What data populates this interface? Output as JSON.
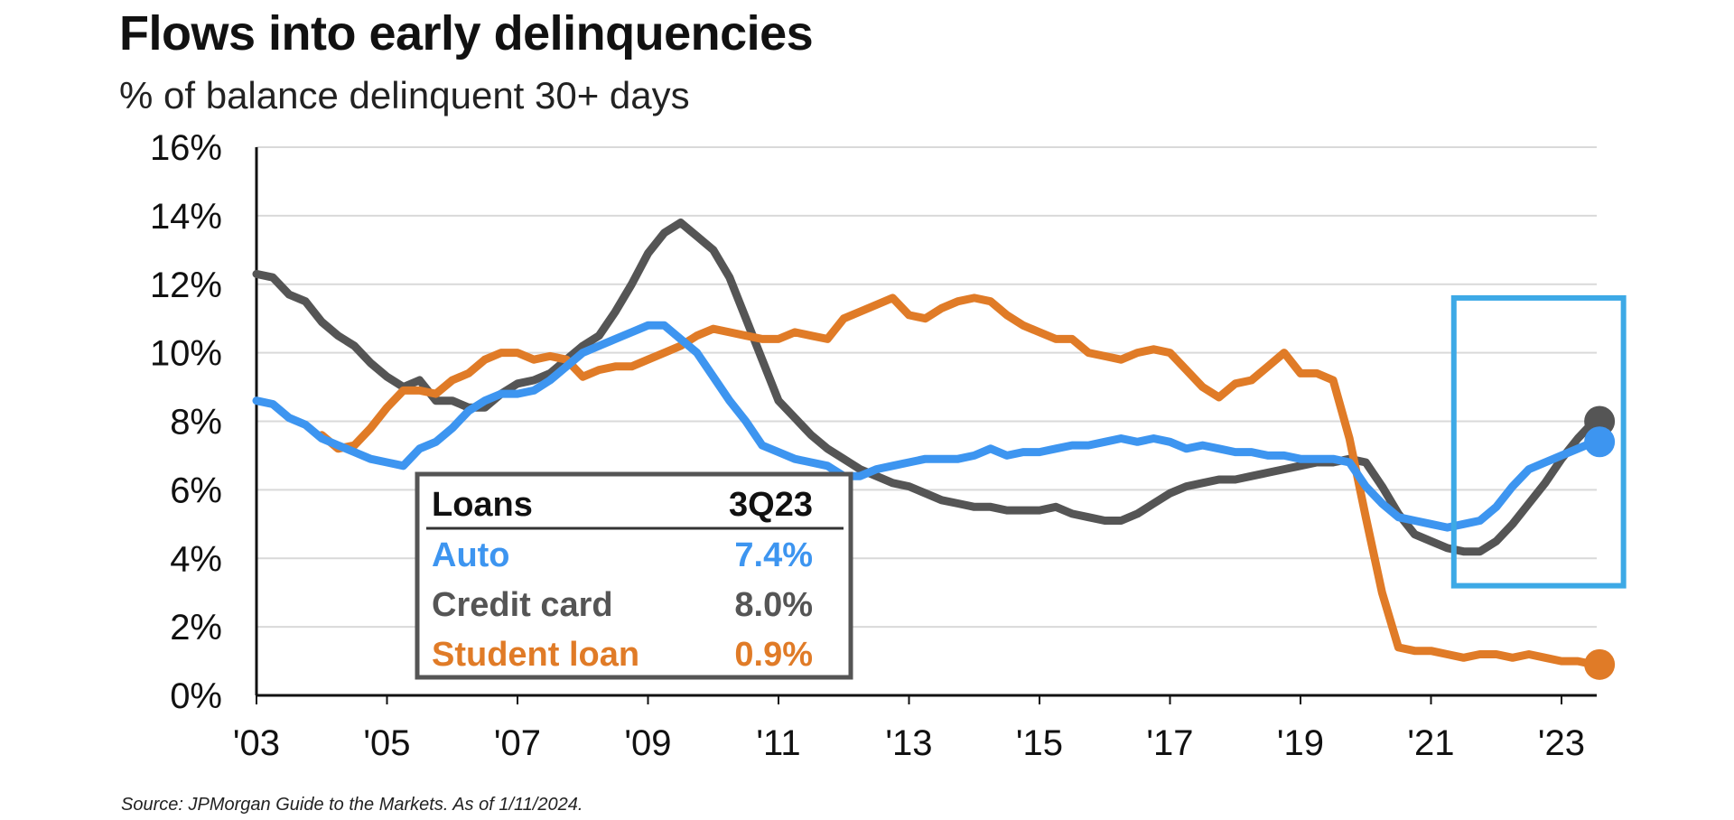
{
  "chart_data": {
    "type": "line",
    "title": "Flows into early delinquencies",
    "subtitle": "% of balance delinquent 30+ days",
    "ylim": [
      0,
      16
    ],
    "xlim": [
      2003,
      2023.75
    ],
    "y_ticks": [
      "0%",
      "2%",
      "4%",
      "6%",
      "8%",
      "10%",
      "12%",
      "14%",
      "16%"
    ],
    "y_tick_values": [
      0,
      2,
      4,
      6,
      8,
      10,
      12,
      14,
      16
    ],
    "x_ticks": [
      "'03",
      "'05",
      "'07",
      "'09",
      "'11",
      "'13",
      "'15",
      "'17",
      "'19",
      "'21",
      "'23"
    ],
    "x_tick_values": [
      2003,
      2005,
      2007,
      2009,
      2011,
      2013,
      2015,
      2017,
      2019,
      2021,
      2023
    ],
    "grid": "horizontal",
    "series": [
      {
        "name": "Auto",
        "color": "#3d95f0",
        "x": [
          2003.0,
          2003.25,
          2003.5,
          2003.75,
          2004.0,
          2004.25,
          2004.5,
          2004.75,
          2005.0,
          2005.25,
          2005.5,
          2005.75,
          2006.0,
          2006.25,
          2006.5,
          2006.75,
          2007.0,
          2007.25,
          2007.5,
          2007.75,
          2008.0,
          2008.25,
          2008.5,
          2008.75,
          2009.0,
          2009.25,
          2009.5,
          2009.75,
          2010.0,
          2010.25,
          2010.5,
          2010.75,
          2011.0,
          2011.25,
          2011.5,
          2011.75,
          2012.0,
          2012.25,
          2012.5,
          2012.75,
          2013.0,
          2013.25,
          2013.5,
          2013.75,
          2014.0,
          2014.25,
          2014.5,
          2014.75,
          2015.0,
          2015.25,
          2015.5,
          2015.75,
          2016.0,
          2016.25,
          2016.5,
          2016.75,
          2017.0,
          2017.25,
          2017.5,
          2017.75,
          2018.0,
          2018.25,
          2018.5,
          2018.75,
          2019.0,
          2019.25,
          2019.5,
          2019.75,
          2020.0,
          2020.25,
          2020.5,
          2020.75,
          2021.0,
          2021.25,
          2021.5,
          2021.75,
          2022.0,
          2022.25,
          2022.5,
          2022.75,
          2023.0,
          2023.25,
          2023.5
        ],
        "values": [
          8.6,
          8.5,
          8.1,
          7.9,
          7.5,
          7.3,
          7.1,
          6.9,
          6.8,
          6.7,
          7.2,
          7.4,
          7.8,
          8.3,
          8.6,
          8.8,
          8.8,
          8.9,
          9.2,
          9.6,
          10.0,
          10.2,
          10.4,
          10.6,
          10.8,
          10.8,
          10.4,
          10.0,
          9.3,
          8.6,
          8.0,
          7.3,
          7.1,
          6.9,
          6.8,
          6.7,
          6.4,
          6.4,
          6.6,
          6.7,
          6.8,
          6.9,
          6.9,
          6.9,
          7.0,
          7.2,
          7.0,
          7.1,
          7.1,
          7.2,
          7.3,
          7.3,
          7.4,
          7.5,
          7.4,
          7.5,
          7.4,
          7.2,
          7.3,
          7.2,
          7.1,
          7.1,
          7.0,
          7.0,
          6.9,
          6.9,
          6.9,
          6.8,
          6.1,
          5.6,
          5.2,
          5.1,
          5.0,
          4.9,
          5.0,
          5.1,
          5.5,
          6.1,
          6.6,
          6.8,
          7.0,
          7.2,
          7.4
        ]
      },
      {
        "name": "Credit card",
        "color": "#555555",
        "x": [
          2003.0,
          2003.25,
          2003.5,
          2003.75,
          2004.0,
          2004.25,
          2004.5,
          2004.75,
          2005.0,
          2005.25,
          2005.5,
          2005.75,
          2006.0,
          2006.25,
          2006.5,
          2006.75,
          2007.0,
          2007.25,
          2007.5,
          2007.75,
          2008.0,
          2008.25,
          2008.5,
          2008.75,
          2009.0,
          2009.25,
          2009.5,
          2009.75,
          2010.0,
          2010.25,
          2010.5,
          2010.75,
          2011.0,
          2011.25,
          2011.5,
          2011.75,
          2012.0,
          2012.25,
          2012.5,
          2012.75,
          2013.0,
          2013.25,
          2013.5,
          2013.75,
          2014.0,
          2014.25,
          2014.5,
          2014.75,
          2015.0,
          2015.25,
          2015.5,
          2015.75,
          2016.0,
          2016.25,
          2016.5,
          2016.75,
          2017.0,
          2017.25,
          2017.5,
          2017.75,
          2018.0,
          2018.25,
          2018.5,
          2018.75,
          2019.0,
          2019.25,
          2019.5,
          2019.75,
          2020.0,
          2020.25,
          2020.5,
          2020.75,
          2021.0,
          2021.25,
          2021.5,
          2021.75,
          2022.0,
          2022.25,
          2022.5,
          2022.75,
          2023.0,
          2023.25,
          2023.5
        ],
        "values": [
          12.3,
          12.2,
          11.7,
          11.5,
          10.9,
          10.5,
          10.2,
          9.7,
          9.3,
          9.0,
          9.2,
          8.6,
          8.6,
          8.4,
          8.4,
          8.8,
          9.1,
          9.2,
          9.4,
          9.8,
          10.2,
          10.5,
          11.2,
          12.0,
          12.9,
          13.5,
          13.8,
          13.4,
          13.0,
          12.2,
          11.0,
          9.8,
          8.6,
          8.1,
          7.6,
          7.2,
          6.9,
          6.6,
          6.4,
          6.2,
          6.1,
          5.9,
          5.7,
          5.6,
          5.5,
          5.5,
          5.4,
          5.4,
          5.4,
          5.5,
          5.3,
          5.2,
          5.1,
          5.1,
          5.3,
          5.6,
          5.9,
          6.1,
          6.2,
          6.3,
          6.3,
          6.4,
          6.5,
          6.6,
          6.7,
          6.8,
          6.8,
          6.9,
          6.8,
          6.1,
          5.3,
          4.7,
          4.5,
          4.3,
          4.2,
          4.2,
          4.5,
          5.0,
          5.6,
          6.2,
          6.9,
          7.5,
          8.0
        ]
      },
      {
        "name": "Student loan",
        "color": "#e07b27",
        "x": [
          2004.0,
          2004.25,
          2004.5,
          2004.75,
          2005.0,
          2005.25,
          2005.5,
          2005.75,
          2006.0,
          2006.25,
          2006.5,
          2006.75,
          2007.0,
          2007.25,
          2007.5,
          2007.75,
          2008.0,
          2008.25,
          2008.5,
          2008.75,
          2009.0,
          2009.25,
          2009.5,
          2009.75,
          2010.0,
          2010.25,
          2010.5,
          2010.75,
          2011.0,
          2011.25,
          2011.5,
          2011.75,
          2012.0,
          2012.25,
          2012.5,
          2012.75,
          2013.0,
          2013.25,
          2013.5,
          2013.75,
          2014.0,
          2014.25,
          2014.5,
          2014.75,
          2015.0,
          2015.25,
          2015.5,
          2015.75,
          2016.0,
          2016.25,
          2016.5,
          2016.75,
          2017.0,
          2017.25,
          2017.5,
          2017.75,
          2018.0,
          2018.25,
          2018.5,
          2018.75,
          2019.0,
          2019.25,
          2019.5,
          2019.75,
          2020.0,
          2020.25,
          2020.5,
          2020.75,
          2021.0,
          2021.25,
          2021.5,
          2021.75,
          2022.0,
          2022.25,
          2022.5,
          2022.75,
          2023.0,
          2023.25,
          2023.5
        ],
        "values": [
          7.6,
          7.2,
          7.3,
          7.8,
          8.4,
          8.9,
          8.9,
          8.8,
          9.2,
          9.4,
          9.8,
          10.0,
          10.0,
          9.8,
          9.9,
          9.8,
          9.3,
          9.5,
          9.6,
          9.6,
          9.8,
          10.0,
          10.2,
          10.5,
          10.7,
          10.6,
          10.5,
          10.4,
          10.4,
          10.6,
          10.5,
          10.4,
          11.0,
          11.2,
          11.4,
          11.6,
          11.1,
          11.0,
          11.3,
          11.5,
          11.6,
          11.5,
          11.1,
          10.8,
          10.6,
          10.4,
          10.4,
          10.0,
          9.9,
          9.8,
          10.0,
          10.1,
          10.0,
          9.5,
          9.0,
          8.7,
          9.1,
          9.2,
          9.6,
          10.0,
          9.4,
          9.4,
          9.2,
          7.5,
          5.2,
          3.0,
          1.4,
          1.3,
          1.3,
          1.2,
          1.1,
          1.2,
          1.2,
          1.1,
          1.2,
          1.1,
          1.0,
          1.0,
          0.9
        ]
      }
    ],
    "legend_table": {
      "header": {
        "label": "Loans",
        "value": "3Q23"
      },
      "rows": [
        {
          "label": "Auto",
          "value": "7.4%",
          "color": "#3d95f0"
        },
        {
          "label": "Credit card",
          "value": "8.0%",
          "color": "#555555"
        },
        {
          "label": "Student loan",
          "value": "0.9%",
          "color": "#e07b27"
        }
      ]
    },
    "highlight_box_color": "#3da9e6",
    "highlight_box_range": {
      "x": [
        2021.35,
        2023.95
      ],
      "y": [
        3.2,
        11.6
      ]
    }
  },
  "source_note": "Source: JPMorgan Guide to the Markets. As of 1/11/2024."
}
